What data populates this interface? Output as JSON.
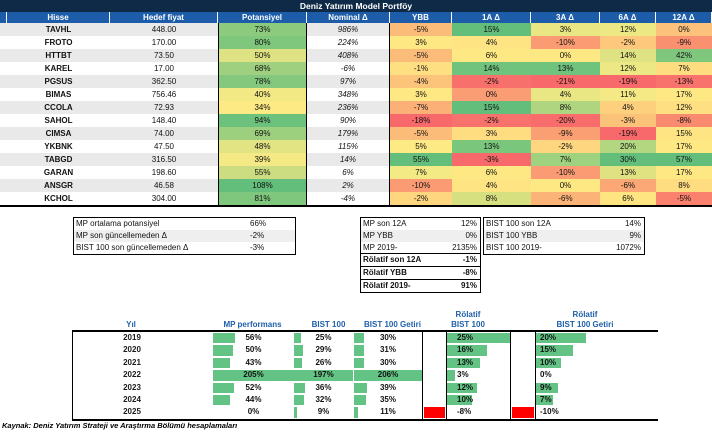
{
  "title": "Deniz Yatırım Model Portföy",
  "colors": {
    "title_bg": "#0E2A47",
    "header_bg": "#1C5CA8",
    "band": "#E9E9E9",
    "bar_green": "#63C384",
    "bar_red": "#FF0000",
    "blue_text": "#1F5FA8",
    "heat_green": "#63BE7B",
    "heat_yellow": "#FFE984",
    "heat_red": "#F8696B"
  },
  "main_table": {
    "headers": [
      "Hisse",
      "Hedef fiyat",
      "Potansiyel",
      "Nominal Δ",
      "YBB",
      "1A Δ",
      "3A Δ",
      "6A Δ",
      "12A Δ"
    ],
    "rows": [
      {
        "ticker": "TAVHL",
        "target": "448.00",
        "potential": "73%",
        "potential_color": "#8CCA7D",
        "nominal": "986%",
        "deltas": [
          {
            "v": "-5%",
            "c": "#FBBB79"
          },
          {
            "v": "15%",
            "c": "#63BE7B"
          },
          {
            "v": "3%",
            "c": "#E9E783"
          },
          {
            "v": "12%",
            "c": "#ECE884"
          },
          {
            "v": "0%",
            "c": "#FCC17B"
          }
        ]
      },
      {
        "ticker": "FROTO",
        "target": "170.00",
        "potential": "80%",
        "potential_color": "#7FC77C",
        "nominal": "224%",
        "deltas": [
          {
            "v": "3%",
            "c": "#FEE883"
          },
          {
            "v": "4%",
            "c": "#FEE482"
          },
          {
            "v": "-10%",
            "c": "#FA9B73"
          },
          {
            "v": "-2%",
            "c": "#FDC77C"
          },
          {
            "v": "-9%",
            "c": "#F9906F"
          }
        ]
      },
      {
        "ticker": "HTTBT",
        "target": "73.50",
        "potential": "50%",
        "potential_color": "#DFE282",
        "nominal": "408%",
        "deltas": [
          {
            "v": "-5%",
            "c": "#FBBB79"
          },
          {
            "v": "6%",
            "c": "#FEE883"
          },
          {
            "v": "0%",
            "c": "#FEE883"
          },
          {
            "v": "14%",
            "c": "#DFE282"
          },
          {
            "v": "42%",
            "c": "#7FC77C"
          }
        ]
      },
      {
        "ticker": "KAREL",
        "target": "17.00",
        "potential": "68%",
        "potential_color": "#9ED07F",
        "nominal": "-6%",
        "deltas": [
          {
            "v": "-1%",
            "c": "#FEDF81"
          },
          {
            "v": "14%",
            "c": "#6FC37C"
          },
          {
            "v": "13%",
            "c": "#70C37C"
          },
          {
            "v": "12%",
            "c": "#ECE884"
          },
          {
            "v": "7%",
            "c": "#FEDC80"
          }
        ]
      },
      {
        "ticker": "PGSUS",
        "target": "362.50",
        "potential": "78%",
        "potential_color": "#83C87D",
        "nominal": "97%",
        "deltas": [
          {
            "v": "-4%",
            "c": "#FCC47B"
          },
          {
            "v": "-2%",
            "c": "#F8706C"
          },
          {
            "v": "-21%",
            "c": "#F8696B"
          },
          {
            "v": "-19%",
            "c": "#F8696B"
          },
          {
            "v": "-13%",
            "c": "#F8736C"
          }
        ]
      },
      {
        "ticker": "BIMAS",
        "target": "756.46",
        "potential": "40%",
        "potential_color": "#F2E985",
        "nominal": "348%",
        "deltas": [
          {
            "v": "3%",
            "c": "#FEE883"
          },
          {
            "v": "0%",
            "c": "#FB9D74"
          },
          {
            "v": "4%",
            "c": "#E8E783"
          },
          {
            "v": "11%",
            "c": "#F5E985"
          },
          {
            "v": "17%",
            "c": "#FDE884"
          }
        ]
      },
      {
        "ticker": "CCOLA",
        "target": "72.93",
        "potential": "34%",
        "potential_color": "#FEEA84",
        "nominal": "236%",
        "deltas": [
          {
            "v": "-7%",
            "c": "#FBB077"
          },
          {
            "v": "15%",
            "c": "#63BE7B"
          },
          {
            "v": "8%",
            "c": "#AFD580"
          },
          {
            "v": "4%",
            "c": "#FDD07E"
          },
          {
            "v": "12%",
            "c": "#FEDF81"
          }
        ]
      },
      {
        "ticker": "SAHOL",
        "target": "148.40",
        "potential": "94%",
        "potential_color": "#6CC27C",
        "nominal": "90%",
        "deltas": [
          {
            "v": "-18%",
            "c": "#F8696B"
          },
          {
            "v": "-2%",
            "c": "#F8726D"
          },
          {
            "v": "-20%",
            "c": "#F86D6C"
          },
          {
            "v": "-3%",
            "c": "#FBC27A"
          },
          {
            "v": "-8%",
            "c": "#FA8A6F"
          }
        ]
      },
      {
        "ticker": "CIMSA",
        "target": "74.00",
        "potential": "69%",
        "potential_color": "#9CD07F",
        "nominal": "179%",
        "deltas": [
          {
            "v": "-5%",
            "c": "#FBBB79"
          },
          {
            "v": "3%",
            "c": "#FEDC80"
          },
          {
            "v": "-9%",
            "c": "#FA9F74"
          },
          {
            "v": "-19%",
            "c": "#F8696B"
          },
          {
            "v": "15%",
            "c": "#FEE482"
          }
        ]
      },
      {
        "ticker": "YKBNK",
        "target": "47.50",
        "potential": "48%",
        "potential_color": "#E2E382",
        "nominal": "115%",
        "deltas": [
          {
            "v": "5%",
            "c": "#FEEA84"
          },
          {
            "v": "13%",
            "c": "#7BC67D"
          },
          {
            "v": "-2%",
            "c": "#FDD67F"
          },
          {
            "v": "20%",
            "c": "#B3D780"
          },
          {
            "v": "17%",
            "c": "#FDE884"
          }
        ]
      },
      {
        "ticker": "TABGD",
        "target": "316.50",
        "potential": "39%",
        "potential_color": "#F4E985",
        "nominal": "14%",
        "deltas": [
          {
            "v": "55%",
            "c": "#63BE7B"
          },
          {
            "v": "-3%",
            "c": "#F8696B"
          },
          {
            "v": "7%",
            "c": "#9ED27F"
          },
          {
            "v": "30%",
            "c": "#63BE7B"
          },
          {
            "v": "57%",
            "c": "#63BE7B"
          }
        ]
      },
      {
        "ticker": "GARAN",
        "target": "198.60",
        "potential": "55%",
        "potential_color": "#CCDC81",
        "nominal": "6%",
        "deltas": [
          {
            "v": "7%",
            "c": "#F3E985"
          },
          {
            "v": "6%",
            "c": "#FEE883"
          },
          {
            "v": "-10%",
            "c": "#FA9B73"
          },
          {
            "v": "13%",
            "c": "#E0E282"
          },
          {
            "v": "17%",
            "c": "#FDE884"
          }
        ]
      },
      {
        "ticker": "ANSGR",
        "target": "46.58",
        "potential": "108%",
        "potential_color": "#63BE7B",
        "nominal": "2%",
        "deltas": [
          {
            "v": "-10%",
            "c": "#FA9B73"
          },
          {
            "v": "4%",
            "c": "#FEE482"
          },
          {
            "v": "0%",
            "c": "#FEE883"
          },
          {
            "v": "-6%",
            "c": "#FBA776"
          },
          {
            "v": "8%",
            "c": "#FEDC80"
          }
        ]
      },
      {
        "ticker": "KCHOL",
        "target": "304.00",
        "potential": "81%",
        "potential_color": "#7EC77C",
        "nominal": "-4%",
        "deltas": [
          {
            "v": "-2%",
            "c": "#FDD67F"
          },
          {
            "v": "8%",
            "c": "#D7E081"
          },
          {
            "v": "-6%",
            "c": "#FBB378"
          },
          {
            "v": "6%",
            "c": "#FEE582"
          },
          {
            "v": "-5%",
            "c": "#F9816E"
          }
        ]
      }
    ]
  },
  "summary_left": {
    "rows": [
      {
        "label": "MP ortalama potansiyel",
        "value": "66%"
      },
      {
        "label": "MP son güncellemeden Δ",
        "value": "-2%"
      },
      {
        "label": "BIST 100 son güncellemeden Δ",
        "value": "-3%"
      }
    ]
  },
  "summary_mp": {
    "rows": [
      {
        "label": "MP son 12A",
        "value": "12%"
      },
      {
        "label": "MP YBB",
        "value": "0%"
      },
      {
        "label": "MP 2019-",
        "value": "2135%"
      }
    ],
    "bold_rows": [
      {
        "label": "Rölatif son 12A",
        "value": "-1%"
      },
      {
        "label": "Rölatif YBB",
        "value": "-8%"
      },
      {
        "label": "Rölatif 2019-",
        "value": "91%"
      }
    ]
  },
  "summary_bist": {
    "rows": [
      {
        "label": "BIST 100 son 12A",
        "value": "14%"
      },
      {
        "label": "BIST 100 YBB",
        "value": "9%"
      },
      {
        "label": "BIST 100 2019-",
        "value": "1072%"
      }
    ]
  },
  "yearly_table": {
    "headers": {
      "year": "Yıl",
      "mp": "MP performans",
      "bist": "BIST 100",
      "bist_getiri": "BIST 100 Getiri",
      "rel": "Rölatif BIST 100",
      "rel_getiri": "Rölatif BIST 100 Getiri"
    },
    "rows": [
      {
        "year": "2019",
        "mp": {
          "label": "56%",
          "value": 56
        },
        "bist": {
          "label": "25%",
          "value": 25
        },
        "bist_getiri": {
          "label": "30%",
          "value": 30
        },
        "rel": {
          "label": "25%",
          "value": 25
        },
        "rel_getiri": {
          "label": "20%",
          "value": 20
        }
      },
      {
        "year": "2020",
        "mp": {
          "label": "50%",
          "value": 50
        },
        "bist": {
          "label": "29%",
          "value": 29
        },
        "bist_getiri": {
          "label": "31%",
          "value": 31
        },
        "rel": {
          "label": "16%",
          "value": 16
        },
        "rel_getiri": {
          "label": "15%",
          "value": 15
        }
      },
      {
        "year": "2021",
        "mp": {
          "label": "43%",
          "value": 43
        },
        "bist": {
          "label": "26%",
          "value": 26
        },
        "bist_getiri": {
          "label": "30%",
          "value": 30
        },
        "rel": {
          "label": "13%",
          "value": 13
        },
        "rel_getiri": {
          "label": "10%",
          "value": 10
        }
      },
      {
        "year": "2022",
        "mp": {
          "label": "205%",
          "value": 205
        },
        "bist": {
          "label": "197%",
          "value": 197
        },
        "bist_getiri": {
          "label": "206%",
          "value": 206
        },
        "rel": {
          "label": "3%",
          "value": 3
        },
        "rel_getiri": {
          "label": "0%",
          "value": 0
        }
      },
      {
        "year": "2023",
        "mp": {
          "label": "52%",
          "value": 52
        },
        "bist": {
          "label": "36%",
          "value": 36
        },
        "bist_getiri": {
          "label": "39%",
          "value": 39
        },
        "rel": {
          "label": "12%",
          "value": 12
        },
        "rel_getiri": {
          "label": "9%",
          "value": 9
        }
      },
      {
        "year": "2024",
        "mp": {
          "label": "44%",
          "value": 44
        },
        "bist": {
          "label": "32%",
          "value": 32
        },
        "bist_getiri": {
          "label": "35%",
          "value": 35
        },
        "rel": {
          "label": "10%",
          "value": 10
        },
        "rel_getiri": {
          "label": "7%",
          "value": 7
        }
      },
      {
        "year": "2025",
        "mp": {
          "label": "0%",
          "value": 0
        },
        "bist": {
          "label": "9%",
          "value": 9
        },
        "bist_getiri": {
          "label": "11%",
          "value": 11
        },
        "rel": {
          "label": "-8%",
          "value": -8
        },
        "rel_getiri": {
          "label": "-10%",
          "value": -10
        }
      }
    ]
  },
  "footer": "Kaynak: Deniz Yatırım Strateji ve Araştırma Bölümü hesaplamaları"
}
